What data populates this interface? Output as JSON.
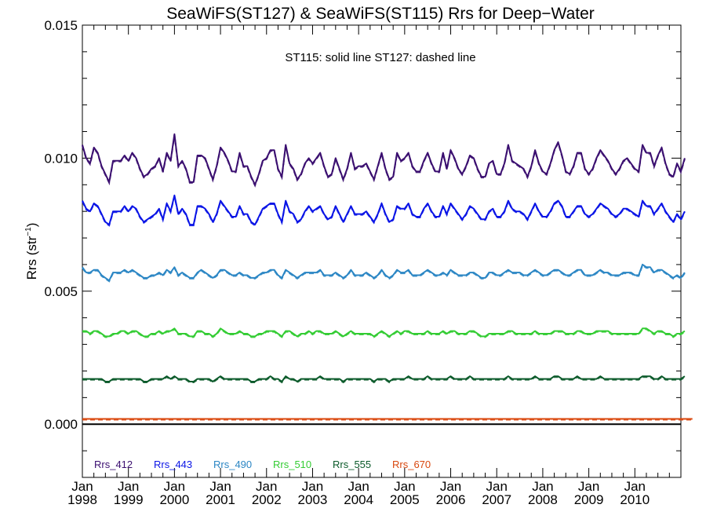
{
  "chart_data": {
    "type": "line",
    "title": "SeaWiFS(ST127) & SeaWiFS(ST115)  Rrs for Deep−Water",
    "xlabel": "",
    "ylabel": "Rrs (str⁻¹)",
    "ylabel_main": "Rrs (str",
    "ylabel_sup": "−1",
    "ylabel_close": ")",
    "annotation": "ST115: solid line   ST127: dashed line",
    "x_axis": {
      "range_years": [
        1998.0,
        2011.0
      ],
      "tick_month": "Jan",
      "tick_years": [
        "1998",
        "1999",
        "2000",
        "2001",
        "2002",
        "2003",
        "2004",
        "2005",
        "2006",
        "2007",
        "2008",
        "2009",
        "2010"
      ]
    },
    "y_axis": {
      "range": [
        -0.002,
        0.015
      ],
      "ticks": [
        0.0,
        0.005,
        0.01,
        0.015
      ],
      "tick_labels": [
        "0.000",
        "0.005",
        "0.010",
        "0.015"
      ]
    },
    "zero_line": 0.0,
    "x_start": 1998.0,
    "x_step_months": 1,
    "series": [
      {
        "name": "Rrs_412",
        "color": "#3b0f70",
        "values": [
          0.0105,
          0.01,
          0.0098,
          0.0104,
          0.0102,
          0.0097,
          0.0094,
          0.0091,
          0.0099,
          0.0099,
          0.0099,
          0.0101,
          0.0099,
          0.0102,
          0.01,
          0.0096,
          0.0093,
          0.0094,
          0.0096,
          0.0097,
          0.01,
          0.0095,
          0.0102,
          0.0099,
          0.0109,
          0.0097,
          0.0099,
          0.0096,
          0.0091,
          0.0091,
          0.0101,
          0.0101,
          0.01,
          0.0096,
          0.0092,
          0.0097,
          0.0104,
          0.0102,
          0.0099,
          0.0095,
          0.0095,
          0.0102,
          0.0097,
          0.0097,
          0.0093,
          0.009,
          0.0094,
          0.0099,
          0.01,
          0.0103,
          0.0103,
          0.0096,
          0.0093,
          0.0105,
          0.0098,
          0.0096,
          0.0092,
          0.0094,
          0.0098,
          0.01,
          0.0098,
          0.01,
          0.0102,
          0.0097,
          0.0093,
          0.0094,
          0.01,
          0.0096,
          0.0092,
          0.0096,
          0.0102,
          0.0096,
          0.0097,
          0.0097,
          0.0098,
          0.0095,
          0.0092,
          0.0097,
          0.0102,
          0.0096,
          0.0092,
          0.0093,
          0.0102,
          0.0099,
          0.01,
          0.0102,
          0.0097,
          0.0095,
          0.0095,
          0.0099,
          0.0102,
          0.0098,
          0.0095,
          0.0095,
          0.0102,
          0.0096,
          0.0103,
          0.01,
          0.0096,
          0.0094,
          0.0097,
          0.0101,
          0.01,
          0.0096,
          0.0093,
          0.0093,
          0.0098,
          0.0099,
          0.0094,
          0.0094,
          0.0098,
          0.0105,
          0.0099,
          0.0098,
          0.0097,
          0.0096,
          0.0093,
          0.0097,
          0.0103,
          0.0098,
          0.0095,
          0.0094,
          0.0098,
          0.0103,
          0.0106,
          0.0101,
          0.0095,
          0.0094,
          0.0097,
          0.0102,
          0.0102,
          0.0096,
          0.0094,
          0.0096,
          0.01,
          0.0103,
          0.0101,
          0.0099,
          0.0096,
          0.0094,
          0.0096,
          0.0099,
          0.01,
          0.0098,
          0.0096,
          0.0095,
          0.0105,
          0.0102,
          0.0102,
          0.0097,
          0.0101,
          0.0104,
          0.0098,
          0.0094,
          0.0093,
          0.0098,
          0.0095,
          0.01
        ]
      },
      {
        "name": "Rrs_443",
        "color": "#0a14e6",
        "values": [
          0.0084,
          0.0081,
          0.008,
          0.0083,
          0.0082,
          0.0079,
          0.0076,
          0.0075,
          0.008,
          0.008,
          0.008,
          0.0082,
          0.008,
          0.0082,
          0.0081,
          0.0078,
          0.0076,
          0.0077,
          0.0078,
          0.0079,
          0.0081,
          0.0077,
          0.0083,
          0.008,
          0.0086,
          0.0079,
          0.0081,
          0.0079,
          0.0075,
          0.0075,
          0.0082,
          0.0082,
          0.0081,
          0.0079,
          0.0076,
          0.0079,
          0.0084,
          0.0082,
          0.008,
          0.0078,
          0.0078,
          0.0082,
          0.0079,
          0.0079,
          0.0076,
          0.0075,
          0.0078,
          0.0081,
          0.0082,
          0.0083,
          0.0083,
          0.0079,
          0.0076,
          0.0084,
          0.008,
          0.0079,
          0.0076,
          0.0077,
          0.008,
          0.0082,
          0.008,
          0.0081,
          0.0082,
          0.0079,
          0.0077,
          0.0078,
          0.0082,
          0.0079,
          0.0076,
          0.0079,
          0.0082,
          0.0079,
          0.0079,
          0.0079,
          0.008,
          0.0078,
          0.0076,
          0.0079,
          0.0083,
          0.0079,
          0.0076,
          0.0077,
          0.0082,
          0.0081,
          0.0081,
          0.0083,
          0.0079,
          0.0078,
          0.0078,
          0.0081,
          0.0083,
          0.008,
          0.0078,
          0.0078,
          0.0082,
          0.0079,
          0.0083,
          0.0081,
          0.0079,
          0.0077,
          0.0079,
          0.0082,
          0.0081,
          0.0079,
          0.0077,
          0.0077,
          0.008,
          0.0081,
          0.0078,
          0.0078,
          0.008,
          0.0084,
          0.0081,
          0.008,
          0.008,
          0.0079,
          0.0077,
          0.008,
          0.0083,
          0.008,
          0.0078,
          0.0078,
          0.008,
          0.0083,
          0.0084,
          0.0082,
          0.0078,
          0.0078,
          0.008,
          0.0082,
          0.0082,
          0.0079,
          0.0078,
          0.0079,
          0.0081,
          0.0083,
          0.0082,
          0.0081,
          0.0079,
          0.0078,
          0.0079,
          0.0081,
          0.0081,
          0.008,
          0.0079,
          0.0078,
          0.0084,
          0.0082,
          0.0082,
          0.0079,
          0.0081,
          0.0083,
          0.008,
          0.0078,
          0.0076,
          0.0079,
          0.0077,
          0.008
        ]
      },
      {
        "name": "Rrs_490",
        "color": "#2b86c4",
        "values": [
          0.0059,
          0.0057,
          0.0057,
          0.0058,
          0.0058,
          0.0056,
          0.0055,
          0.0054,
          0.0057,
          0.0057,
          0.0057,
          0.0058,
          0.0057,
          0.0058,
          0.0057,
          0.0056,
          0.0055,
          0.0055,
          0.0056,
          0.0056,
          0.0057,
          0.0056,
          0.0058,
          0.0057,
          0.0059,
          0.0056,
          0.0057,
          0.0056,
          0.0055,
          0.0055,
          0.0057,
          0.0058,
          0.0057,
          0.0056,
          0.0055,
          0.0056,
          0.0058,
          0.0058,
          0.0057,
          0.0056,
          0.0056,
          0.0057,
          0.0056,
          0.0056,
          0.0055,
          0.0055,
          0.0056,
          0.0057,
          0.0057,
          0.0058,
          0.0058,
          0.0056,
          0.0055,
          0.0058,
          0.0057,
          0.0056,
          0.0055,
          0.0056,
          0.0057,
          0.0057,
          0.0057,
          0.0057,
          0.0058,
          0.0056,
          0.0056,
          0.0056,
          0.0057,
          0.0056,
          0.0055,
          0.0056,
          0.0058,
          0.0056,
          0.0056,
          0.0056,
          0.0057,
          0.0056,
          0.0055,
          0.0056,
          0.0058,
          0.0056,
          0.0055,
          0.0056,
          0.0058,
          0.0057,
          0.0057,
          0.0058,
          0.0056,
          0.0056,
          0.0056,
          0.0057,
          0.0058,
          0.0057,
          0.0056,
          0.0056,
          0.0057,
          0.0056,
          0.0058,
          0.0057,
          0.0056,
          0.0056,
          0.0056,
          0.0057,
          0.0057,
          0.0056,
          0.0055,
          0.0055,
          0.0057,
          0.0057,
          0.0056,
          0.0056,
          0.0057,
          0.0058,
          0.0057,
          0.0057,
          0.0057,
          0.0056,
          0.0056,
          0.0057,
          0.0058,
          0.0057,
          0.0056,
          0.0056,
          0.0057,
          0.0058,
          0.0058,
          0.0057,
          0.0056,
          0.0056,
          0.0057,
          0.0058,
          0.0058,
          0.0056,
          0.0056,
          0.0056,
          0.0057,
          0.0058,
          0.0057,
          0.0057,
          0.0056,
          0.0056,
          0.0056,
          0.0057,
          0.0057,
          0.0057,
          0.0056,
          0.0056,
          0.006,
          0.0059,
          0.0059,
          0.0057,
          0.0058,
          0.0058,
          0.0057,
          0.0056,
          0.0055,
          0.0056,
          0.0055,
          0.0057
        ]
      },
      {
        "name": "Rrs_510",
        "color": "#33cc33",
        "values": [
          0.0035,
          0.0035,
          0.0034,
          0.0035,
          0.0035,
          0.0034,
          0.0033,
          0.0033,
          0.0034,
          0.0034,
          0.0035,
          0.0035,
          0.0034,
          0.0035,
          0.0035,
          0.0034,
          0.0033,
          0.0033,
          0.0034,
          0.0034,
          0.0035,
          0.0034,
          0.0035,
          0.0035,
          0.0036,
          0.0034,
          0.0034,
          0.0034,
          0.0033,
          0.0033,
          0.0035,
          0.0035,
          0.0034,
          0.0034,
          0.0033,
          0.0034,
          0.0036,
          0.0035,
          0.0034,
          0.0034,
          0.0034,
          0.0035,
          0.0034,
          0.0034,
          0.0033,
          0.0033,
          0.0034,
          0.0034,
          0.0035,
          0.0035,
          0.0035,
          0.0034,
          0.0033,
          0.0035,
          0.0035,
          0.0034,
          0.0033,
          0.0034,
          0.0034,
          0.0035,
          0.0034,
          0.0035,
          0.0035,
          0.0034,
          0.0034,
          0.0034,
          0.0035,
          0.0034,
          0.0033,
          0.0034,
          0.0035,
          0.0034,
          0.0034,
          0.0034,
          0.0034,
          0.0034,
          0.0033,
          0.0034,
          0.0035,
          0.0034,
          0.0033,
          0.0034,
          0.0035,
          0.0034,
          0.0035,
          0.0035,
          0.0034,
          0.0034,
          0.0034,
          0.0034,
          0.0035,
          0.0034,
          0.0034,
          0.0034,
          0.0035,
          0.0034,
          0.0035,
          0.0035,
          0.0034,
          0.0034,
          0.0034,
          0.0035,
          0.0035,
          0.0034,
          0.0033,
          0.0033,
          0.0034,
          0.0034,
          0.0034,
          0.0034,
          0.0034,
          0.0035,
          0.0035,
          0.0034,
          0.0034,
          0.0034,
          0.0034,
          0.0034,
          0.0035,
          0.0034,
          0.0034,
          0.0034,
          0.0034,
          0.0035,
          0.0035,
          0.0035,
          0.0034,
          0.0034,
          0.0034,
          0.0035,
          0.0035,
          0.0034,
          0.0034,
          0.0034,
          0.0035,
          0.0035,
          0.0035,
          0.0035,
          0.0034,
          0.0034,
          0.0034,
          0.0034,
          0.0034,
          0.0034,
          0.0034,
          0.0034,
          0.0036,
          0.0036,
          0.0035,
          0.0034,
          0.0035,
          0.0035,
          0.0034,
          0.0034,
          0.0033,
          0.0034,
          0.0034,
          0.0035
        ]
      },
      {
        "name": "Rrs_555",
        "color": "#0b5a2a",
        "values": [
          0.0017,
          0.0017,
          0.0017,
          0.0017,
          0.0017,
          0.0017,
          0.0016,
          0.0016,
          0.0017,
          0.0017,
          0.0017,
          0.0017,
          0.0017,
          0.0017,
          0.0017,
          0.0017,
          0.0016,
          0.0016,
          0.0017,
          0.0017,
          0.0017,
          0.0017,
          0.0018,
          0.0017,
          0.0018,
          0.0017,
          0.0017,
          0.0017,
          0.0016,
          0.0016,
          0.0017,
          0.0017,
          0.0017,
          0.0017,
          0.0016,
          0.0017,
          0.0018,
          0.0017,
          0.0017,
          0.0017,
          0.0017,
          0.0017,
          0.0017,
          0.0017,
          0.0016,
          0.0016,
          0.0017,
          0.0017,
          0.0017,
          0.0018,
          0.0017,
          0.0017,
          0.0016,
          0.0018,
          0.0017,
          0.0017,
          0.0016,
          0.0017,
          0.0017,
          0.0017,
          0.0017,
          0.0017,
          0.0018,
          0.0017,
          0.0017,
          0.0017,
          0.0017,
          0.0017,
          0.0016,
          0.0017,
          0.0017,
          0.0017,
          0.0017,
          0.0017,
          0.0017,
          0.0017,
          0.0016,
          0.0017,
          0.0017,
          0.0017,
          0.0016,
          0.0017,
          0.0017,
          0.0017,
          0.0017,
          0.0018,
          0.0017,
          0.0017,
          0.0017,
          0.0017,
          0.0018,
          0.0017,
          0.0017,
          0.0017,
          0.0017,
          0.0017,
          0.0018,
          0.0017,
          0.0017,
          0.0017,
          0.0017,
          0.0018,
          0.0017,
          0.0017,
          0.0017,
          0.0017,
          0.0017,
          0.0017,
          0.0017,
          0.0017,
          0.0017,
          0.0018,
          0.0017,
          0.0017,
          0.0017,
          0.0017,
          0.0017,
          0.0017,
          0.0018,
          0.0017,
          0.0017,
          0.0017,
          0.0017,
          0.0018,
          0.0018,
          0.0017,
          0.0017,
          0.0017,
          0.0017,
          0.0018,
          0.0017,
          0.0017,
          0.0017,
          0.0017,
          0.0017,
          0.0018,
          0.0017,
          0.0017,
          0.0017,
          0.0017,
          0.0017,
          0.0017,
          0.0017,
          0.0017,
          0.0017,
          0.0017,
          0.0018,
          0.0018,
          0.0018,
          0.0017,
          0.0017,
          0.0018,
          0.0017,
          0.0017,
          0.0017,
          0.0017,
          0.0017,
          0.0018
        ]
      },
      {
        "name": "Rrs_670",
        "color": "#d9480f",
        "values": [
          0.0002,
          0.0002,
          0.0002,
          0.0002,
          0.0002,
          0.0002,
          0.0002,
          0.0002,
          0.0002,
          0.0002,
          0.0002,
          0.0002,
          0.0002,
          0.0002,
          0.0002,
          0.0002,
          0.0002,
          0.0002,
          0.0002,
          0.0002,
          0.0002,
          0.0002,
          0.0002,
          0.0002,
          0.0002,
          0.0002,
          0.0002,
          0.0002,
          0.0002,
          0.0002,
          0.0002,
          0.0002,
          0.0002,
          0.0002,
          0.0002,
          0.0002,
          0.0002,
          0.0002,
          0.0002,
          0.0002,
          0.0002,
          0.0002,
          0.0002,
          0.0002,
          0.0002,
          0.0002,
          0.0002,
          0.0002,
          0.0002,
          0.0002,
          0.0002,
          0.0002,
          0.0002,
          0.0002,
          0.0002,
          0.0002,
          0.0002,
          0.0002,
          0.0002,
          0.0002,
          0.0002,
          0.0002,
          0.0002,
          0.0002,
          0.0002,
          0.0002,
          0.0002,
          0.0002,
          0.0002,
          0.0002,
          0.0002,
          0.0002,
          0.0002,
          0.0002,
          0.0002,
          0.0002,
          0.0002,
          0.0002,
          0.0002,
          0.0002,
          0.0002,
          0.0002,
          0.0002,
          0.0002,
          0.0002,
          0.0002,
          0.0002,
          0.0002,
          0.0002,
          0.0002,
          0.0002,
          0.0002,
          0.0002,
          0.0002,
          0.0002,
          0.0002,
          0.0002,
          0.0002,
          0.0002,
          0.0002,
          0.0002,
          0.0002,
          0.0002,
          0.0002,
          0.0002,
          0.0002,
          0.0002,
          0.0002,
          0.0002,
          0.0002,
          0.0002,
          0.0002,
          0.0002,
          0.0002,
          0.0002,
          0.0002,
          0.0002,
          0.0002,
          0.0002,
          0.0002,
          0.0002,
          0.0002,
          0.0002,
          0.0002,
          0.0002,
          0.0002,
          0.0002,
          0.0002,
          0.0002,
          0.0002,
          0.0002,
          0.0002,
          0.0002,
          0.0002,
          0.0002,
          0.0002,
          0.0002,
          0.0002,
          0.0002,
          0.0002,
          0.0002,
          0.0002,
          0.0002,
          0.0002,
          0.0002,
          0.0002,
          0.0002,
          0.0002,
          0.0002,
          0.0002,
          0.0002,
          0.0002,
          0.0002,
          0.0002,
          0.0002,
          0.0002,
          0.0002,
          0.0002,
          0.0002,
          0.0002
        ]
      }
    ],
    "legend": {
      "placement": "bottom-inside",
      "entries": [
        "Rrs_412",
        "Rrs_443",
        "Rrs_490",
        "Rrs_510",
        "Rrs_555",
        "Rrs_670"
      ]
    }
  }
}
